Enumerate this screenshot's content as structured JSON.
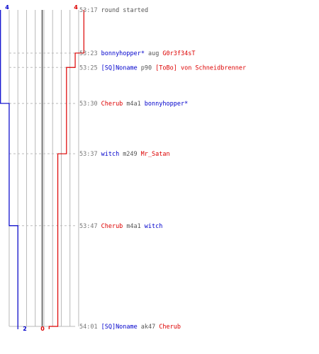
{
  "colors": {
    "team_a": "#0000cc",
    "team_b": "#dd0000",
    "grid": "#b8b8b8",
    "center": "#555555",
    "time": "#777777",
    "guide": "#bbbbbb"
  },
  "score_labels": {
    "start_a": "4",
    "start_b": "4",
    "end_a": "2",
    "end_b": "0"
  },
  "chart_data": {
    "type": "line",
    "title": "",
    "x_label": "",
    "y_label": "",
    "grid": true,
    "alive_range": [
      0,
      4
    ],
    "series": [
      {
        "team": "a",
        "color": "#0000cc",
        "steps": [
          4,
          4,
          4,
          3,
          3,
          2,
          2
        ]
      },
      {
        "team": "b",
        "color": "#dd0000",
        "steps": [
          4,
          3,
          2,
          2,
          1,
          1,
          0
        ]
      }
    ],
    "events": [
      {
        "time": "53:17",
        "seconds": 0,
        "parts": [
          {
            "text": "round started",
            "team": "neutral"
          }
        ]
      },
      {
        "time": "53:23",
        "seconds": 6,
        "parts": [
          {
            "text": "bonnyhopper*",
            "team": "a"
          },
          {
            "text": "aug",
            "team": "neutral"
          },
          {
            "text": "G0r3f34sT",
            "team": "b"
          }
        ]
      },
      {
        "time": "53:25",
        "seconds": 8,
        "parts": [
          {
            "text": "[SQ]Noname",
            "team": "a"
          },
          {
            "text": "p90",
            "team": "neutral"
          },
          {
            "text": "[ToBo] von Schneidbrenner",
            "team": "b"
          }
        ]
      },
      {
        "time": "53:30",
        "seconds": 13,
        "parts": [
          {
            "text": "Cherub",
            "team": "b"
          },
          {
            "text": "m4a1",
            "team": "neutral"
          },
          {
            "text": "bonnyhopper*",
            "team": "a"
          }
        ]
      },
      {
        "time": "53:37",
        "seconds": 20,
        "parts": [
          {
            "text": "witch",
            "team": "a"
          },
          {
            "text": "m249",
            "team": "neutral"
          },
          {
            "text": "Mr_Satan",
            "team": "b"
          }
        ]
      },
      {
        "time": "53:47",
        "seconds": 30,
        "parts": [
          {
            "text": "Cherub",
            "team": "b"
          },
          {
            "text": "m4a1",
            "team": "neutral"
          },
          {
            "text": "witch",
            "team": "a"
          }
        ]
      },
      {
        "time": "54:01",
        "seconds": 44,
        "parts": [
          {
            "text": "[SQ]Noname",
            "team": "a"
          },
          {
            "text": "ak47",
            "team": "neutral"
          },
          {
            "text": "Cherub",
            "team": "b"
          }
        ]
      }
    ]
  }
}
